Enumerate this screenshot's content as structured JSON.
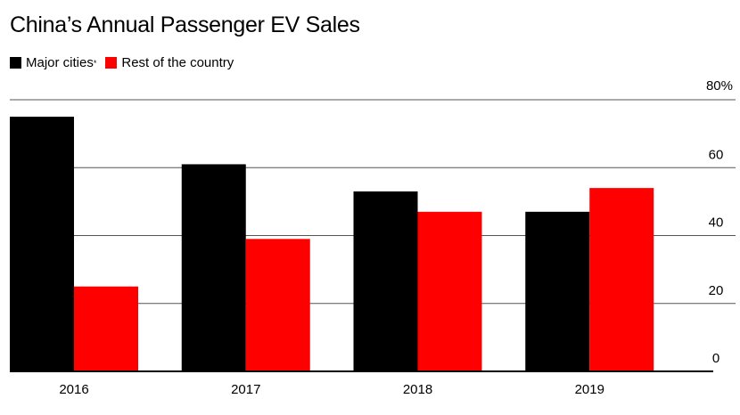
{
  "chart_data": {
    "type": "bar",
    "title": "China’s Annual Passenger EV Sales",
    "categories": [
      "2016",
      "2017",
      "2018",
      "2019"
    ],
    "series": [
      {
        "name": "Major cities",
        "name_suffix": "*",
        "color": "#000000",
        "values": [
          75,
          61,
          53,
          47
        ]
      },
      {
        "name": "Rest of the country",
        "color": "#ff0000",
        "values": [
          25,
          39,
          47,
          54
        ]
      }
    ],
    "ylim": [
      0,
      80
    ],
    "yticks": [
      {
        "value": 0,
        "label": "0"
      },
      {
        "value": 20,
        "label": "20"
      },
      {
        "value": 40,
        "label": "40"
      },
      {
        "value": 60,
        "label": "60"
      },
      {
        "value": 80,
        "label": "80%"
      }
    ],
    "y_axis_side": "right",
    "grid": true,
    "legend_position": "top-left"
  }
}
